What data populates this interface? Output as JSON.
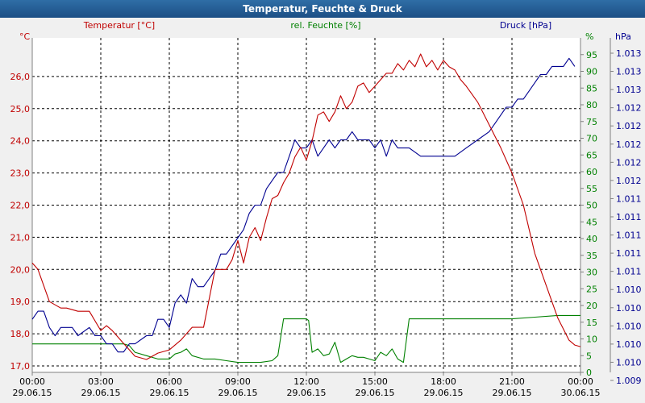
{
  "window": {
    "title": "Temperatur, Feuchte & Druck"
  },
  "chart_data": {
    "type": "line",
    "title": "Temperatur, Feuchte & Druck",
    "series_labels": {
      "temperature": "Temperatur [°C]",
      "humidity": "rel. Feuchte [%]",
      "pressure": "Druck [hPa]"
    },
    "unit_labels": {
      "left": "°C",
      "right1": "%",
      "right2": "hPa"
    },
    "colors": {
      "temperature": "#c00000",
      "humidity": "#008000",
      "pressure": "#000090",
      "grid": "#000000",
      "axis": "#808080"
    },
    "x_ticks": [
      {
        "time": "00:00",
        "date": "29.06.15"
      },
      {
        "time": "03:00",
        "date": "29.06.15"
      },
      {
        "time": "06:00",
        "date": "29.06.15"
      },
      {
        "time": "09:00",
        "date": "29.06.15"
      },
      {
        "time": "12:00",
        "date": "29.06.15"
      },
      {
        "time": "15:00",
        "date": "29.06.15"
      },
      {
        "time": "18:00",
        "date": "29.06.15"
      },
      {
        "time": "21:00",
        "date": "29.06.15"
      },
      {
        "time": "00:00",
        "date": "30.06.15"
      }
    ],
    "temp_axis": {
      "min": 16.8,
      "max": 27.2,
      "ticks": [
        "17,0",
        "18,0",
        "19,0",
        "20,0",
        "21,0",
        "22,0",
        "23,0",
        "24,0",
        "25,0",
        "26,0"
      ]
    },
    "hum_axis": {
      "min": 0,
      "max": 100,
      "ticks": [
        "0",
        "5",
        "10",
        "15",
        "20",
        "25",
        "30",
        "35",
        "40",
        "45",
        "50",
        "55",
        "60",
        "65",
        "70",
        "75",
        "80",
        "85",
        "90",
        "95"
      ]
    },
    "press_axis": {
      "ticks": [
        "1.009",
        "1.010",
        "1.010",
        "1.010",
        "1.010",
        "1.010",
        "1.011",
        "1.011",
        "1.011",
        "1.011",
        "1.011",
        "1.012",
        "1.012",
        "1.012",
        "1.012",
        "1.012",
        "1.013",
        "1.013",
        "1.013"
      ]
    },
    "temperature": {
      "x": [
        0,
        0.25,
        0.5,
        0.75,
        1,
        1.25,
        1.5,
        2,
        2.5,
        3,
        3.25,
        3.5,
        4,
        4.5,
        5,
        5.5,
        6,
        6.5,
        7,
        7.5,
        8,
        8.25,
        8.5,
        8.75,
        9,
        9.25,
        9.5,
        9.75,
        10,
        10.25,
        10.5,
        10.75,
        11,
        11.25,
        11.5,
        11.75,
        12,
        12.25,
        12.5,
        12.75,
        13,
        13.25,
        13.5,
        13.75,
        14,
        14.25,
        14.5,
        14.75,
        15,
        15.25,
        15.5,
        15.75,
        16,
        16.25,
        16.5,
        16.75,
        17,
        17.25,
        17.5,
        17.75,
        18,
        18.25,
        18.5,
        18.75,
        19,
        19.5,
        20,
        20.5,
        21,
        21.5,
        22,
        22.5,
        23,
        23.5,
        23.75,
        24
      ],
      "values": [
        20.2,
        20.0,
        19.5,
        19.0,
        18.9,
        18.8,
        18.8,
        18.7,
        18.7,
        18.1,
        18.25,
        18.1,
        17.7,
        17.3,
        17.2,
        17.4,
        17.5,
        17.8,
        18.2,
        18.2,
        20.0,
        20.0,
        20.0,
        20.3,
        20.9,
        20.2,
        21.0,
        21.3,
        20.9,
        21.6,
        22.2,
        22.3,
        22.7,
        23.0,
        23.5,
        23.8,
        23.4,
        24.0,
        24.8,
        24.9,
        24.6,
        24.9,
        25.4,
        25.0,
        25.2,
        25.7,
        25.8,
        25.5,
        25.7,
        25.9,
        26.1,
        26.1,
        26.4,
        26.2,
        26.5,
        26.3,
        26.7,
        26.3,
        26.5,
        26.2,
        26.5,
        26.3,
        26.2,
        25.9,
        25.7,
        25.2,
        24.5,
        23.8,
        23.0,
        22.0,
        20.5,
        19.5,
        18.5,
        17.8,
        17.65,
        17.6
      ]
    },
    "humidity": {
      "x": [
        0,
        4,
        4.25,
        4.5,
        5,
        5.5,
        6,
        6.25,
        6.5,
        6.75,
        7,
        7.5,
        8,
        8.5,
        9,
        9.5,
        10,
        10.5,
        10.75,
        11,
        12,
        12.1,
        12.25,
        12.5,
        12.75,
        13,
        13.25,
        13.5,
        13.75,
        14,
        14.25,
        14.5,
        14.75,
        15,
        15.25,
        15.5,
        15.75,
        16,
        16.25,
        16.5,
        16.75,
        17,
        18,
        19,
        20,
        21,
        22,
        23,
        24
      ],
      "values": [
        8.5,
        8.5,
        8,
        6,
        5,
        4,
        4,
        5.5,
        6,
        7,
        5,
        4,
        4,
        3.5,
        3,
        3,
        3,
        3.5,
        5,
        16,
        16,
        15.5,
        6,
        7,
        5,
        5.5,
        9,
        3,
        4,
        5,
        4.5,
        4.5,
        4,
        3.5,
        6,
        5,
        7,
        4,
        3,
        16,
        16,
        16,
        16,
        16,
        16,
        16,
        16.5,
        17,
        17
      ]
    },
    "pressure": {
      "x": [
        0,
        0.25,
        0.5,
        0.75,
        1,
        1.25,
        1.5,
        1.75,
        2,
        2.5,
        2.75,
        3,
        3.25,
        3.5,
        3.75,
        4,
        4.25,
        4.5,
        5,
        5.25,
        5.5,
        5.75,
        6,
        6.25,
        6.5,
        6.75,
        7,
        7.25,
        7.5,
        7.75,
        8,
        8.25,
        8.5,
        8.75,
        9,
        9.25,
        9.5,
        9.75,
        10,
        10.25,
        10.5,
        10.75,
        11,
        11.25,
        11.5,
        11.75,
        12,
        12.25,
        12.5,
        12.75,
        13,
        13.25,
        13.5,
        13.75,
        14,
        14.25,
        14.5,
        14.75,
        15,
        15.25,
        15.5,
        15.75,
        16,
        16.5,
        17,
        17.5,
        18,
        18.5,
        19,
        19.5,
        20,
        20.25,
        20.5,
        20.75,
        21,
        21.25,
        21.5,
        21.75,
        22,
        22.25,
        22.5,
        22.75,
        23,
        23.25,
        23.5,
        23.75
      ],
      "values": [
        1010.0,
        1010.1,
        1010.1,
        1009.9,
        1009.8,
        1009.9,
        1009.9,
        1009.9,
        1009.8,
        1009.9,
        1009.8,
        1009.8,
        1009.7,
        1009.7,
        1009.6,
        1009.6,
        1009.7,
        1009.7,
        1009.8,
        1009.8,
        1010.0,
        1010.0,
        1009.9,
        1010.2,
        1010.3,
        1010.2,
        1010.5,
        1010.4,
        1010.4,
        1010.5,
        1010.6,
        1010.8,
        1010.8,
        1010.9,
        1011.0,
        1011.1,
        1011.3,
        1011.4,
        1011.4,
        1011.6,
        1011.7,
        1011.8,
        1011.8,
        1012.0,
        1012.2,
        1012.1,
        1012.1,
        1012.2,
        1012.0,
        1012.1,
        1012.2,
        1012.1,
        1012.2,
        1012.2,
        1012.3,
        1012.2,
        1012.2,
        1012.2,
        1012.1,
        1012.2,
        1012.0,
        1012.2,
        1012.1,
        1012.1,
        1012.0,
        1012.0,
        1012.0,
        1012.0,
        1012.1,
        1012.2,
        1012.3,
        1012.4,
        1012.5,
        1012.6,
        1012.6,
        1012.7,
        1012.7,
        1012.8,
        1012.9,
        1013.0,
        1013.0,
        1013.1,
        1013.1,
        1013.1,
        1013.2,
        1013.1
      ]
    },
    "pressure_range": [
      1009.35,
      1013.45
    ],
    "x_range": [
      0,
      24
    ],
    "grid": true
  }
}
